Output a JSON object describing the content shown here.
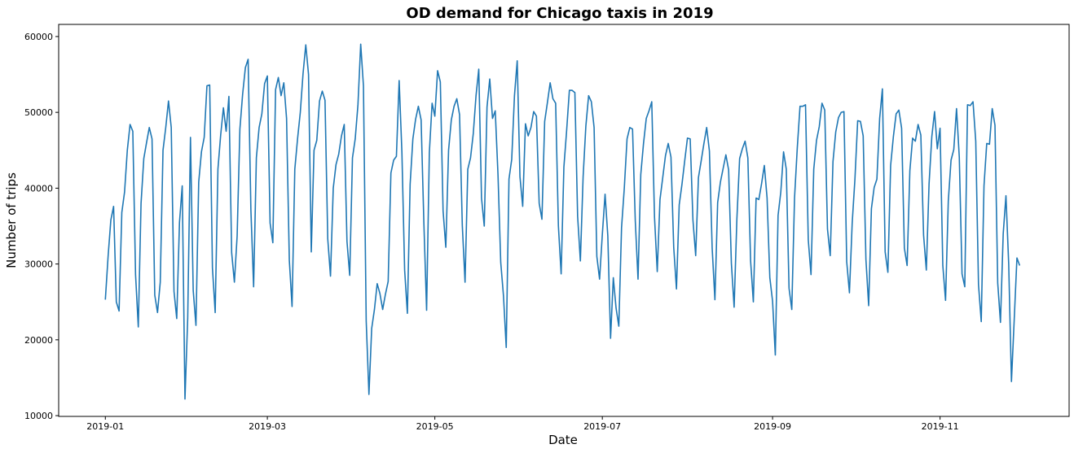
{
  "chart_data": {
    "type": "line",
    "title": "OD demand for Chicago taxis in 2019",
    "xlabel": "Date",
    "ylabel": "Number of trips",
    "x_start": "2019-01-01",
    "x_end": "2019-12-01",
    "xlim": [
      "2018-12-15",
      "2019-12-18"
    ],
    "ylim": [
      9900,
      61600
    ],
    "x_ticks": [
      "2019-01-01",
      "2019-03-01",
      "2019-05-01",
      "2019-07-01",
      "2019-09-01",
      "2019-11-01"
    ],
    "x_tick_labels": [
      "2019-01",
      "2019-03",
      "2019-05",
      "2019-07",
      "2019-09",
      "2019-11"
    ],
    "y_ticks": [
      10000,
      20000,
      30000,
      40000,
      50000,
      60000
    ],
    "y_tick_labels": [
      "10000",
      "20000",
      "30000",
      "40000",
      "50000",
      "60000"
    ],
    "grid": false,
    "series": [
      {
        "color": "#1f77b4",
        "values": [
          25300,
          31000,
          35800,
          37600,
          25000,
          23800,
          36800,
          39500,
          45000,
          48400,
          47500,
          28600,
          21700,
          38000,
          43900,
          46000,
          48000,
          46500,
          25900,
          23600,
          27600,
          45000,
          48000,
          51500,
          48000,
          26400,
          22800,
          35500,
          40300,
          12200,
          22900,
          46700,
          26500,
          21900,
          40800,
          44800,
          46700,
          53500,
          53600,
          29500,
          23600,
          42500,
          47000,
          50600,
          47500,
          52100,
          31500,
          27600,
          33700,
          47800,
          52400,
          55900,
          57000,
          37200,
          27000,
          44000,
          48000,
          49800,
          53800,
          54800,
          35400,
          32800,
          53000,
          54600,
          52200,
          53900,
          49200,
          30500,
          24400,
          42500,
          46500,
          50000,
          55100,
          58900,
          55000,
          31600,
          45000,
          46300,
          51500,
          52800,
          51600,
          33300,
          28400,
          40000,
          43100,
          44500,
          46900,
          48400,
          33000,
          28500,
          44000,
          46500,
          51000,
          59000,
          53500,
          22500,
          12800,
          21500,
          24000,
          27400,
          26100,
          24000,
          26000,
          27700,
          42000,
          43700,
          44200,
          54200,
          44800,
          29200,
          23500,
          40500,
          46500,
          49100,
          50800,
          49000,
          35500,
          23900,
          44700,
          51200,
          49500,
          55500,
          54000,
          37000,
          32200,
          45000,
          49000,
          50800,
          51800,
          49700,
          35100,
          27600,
          42500,
          44000,
          47200,
          52200,
          55700,
          38700,
          35000,
          50700,
          54400,
          49200,
          50200,
          41800,
          30200,
          25800,
          19000,
          41200,
          43800,
          52200,
          56800,
          41500,
          37600,
          48500,
          46900,
          48000,
          50100,
          49500,
          38000,
          35900,
          48800,
          51300,
          53900,
          51800,
          51200,
          35000,
          28700,
          42800,
          47600,
          52900,
          52900,
          52600,
          36300,
          30400,
          41500,
          48200,
          52200,
          51400,
          48000,
          31000,
          28000,
          33900,
          39200,
          33700,
          20200,
          28200,
          24200,
          21800,
          34800,
          40000,
          46500,
          48000,
          47800,
          35700,
          28000,
          41800,
          45900,
          49200,
          50200,
          51400,
          36200,
          29000,
          38500,
          41400,
          44300,
          45900,
          44100,
          32200,
          26700,
          37800,
          40500,
          43600,
          46600,
          46500,
          35800,
          31100,
          41400,
          43600,
          45900,
          48000,
          44900,
          32100,
          25300,
          38100,
          40800,
          42600,
          44400,
          42400,
          30100,
          24300,
          35900,
          43900,
          45200,
          46200,
          44000,
          30400,
          25000,
          38700,
          38500,
          40600,
          43000,
          38700,
          28200,
          25100,
          18000,
          36400,
          39500,
          44800,
          42500,
          26800,
          24000,
          38700,
          45300,
          50800,
          50800,
          51000,
          33200,
          28600,
          42500,
          46300,
          48100,
          51200,
          50300,
          34600,
          31100,
          43500,
          47400,
          49300,
          50000,
          50100,
          30300,
          26200,
          35400,
          41200,
          48900,
          48800,
          46900,
          30600,
          24500,
          37300,
          40100,
          41200,
          49200,
          53100,
          31600,
          28900,
          43000,
          46800,
          49800,
          50300,
          47900,
          32100,
          29800,
          42300,
          46600,
          46200,
          48400,
          47000,
          33800,
          29200,
          40600,
          46800,
          50100,
          45200,
          47900,
          29800,
          25200,
          38300,
          43700,
          45100,
          50500,
          44100,
          28700,
          27000,
          51000,
          50900,
          51400,
          46200,
          27300,
          22400,
          40300,
          45900,
          45800,
          50500,
          48300,
          27500,
          22300,
          34000,
          39000,
          30000,
          14500,
          22600,
          30800,
          29800
        ]
      }
    ]
  }
}
